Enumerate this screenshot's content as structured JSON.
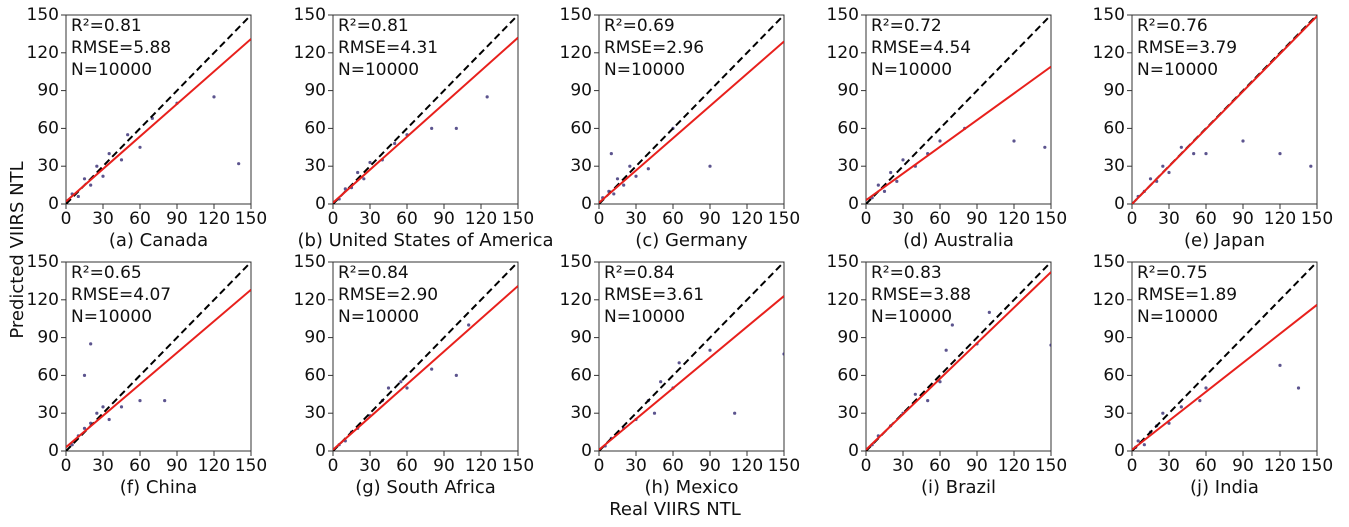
{
  "y_label": "Predicted VIIRS NTL",
  "x_label": "Real VIIRS NTL",
  "chart_data": [
    {
      "type": "scatter",
      "title": "(a) Canada",
      "annotations": [
        "R²=0.81",
        "RMSE=5.88",
        "N=10000"
      ],
      "x": [
        5,
        10,
        15,
        20,
        25,
        30,
        35,
        45,
        50,
        60,
        70,
        90,
        120,
        140
      ],
      "values": [
        8,
        6,
        20,
        15,
        30,
        22,
        40,
        35,
        55,
        45,
        68,
        80,
        85,
        32
      ],
      "color": "#40367a",
      "fit_line": {
        "x": [
          0,
          150
        ],
        "values": [
          2,
          131
        ],
        "color": "#e8201c"
      },
      "reference_line": {
        "x": [
          0,
          150
        ],
        "values": [
          0,
          150
        ],
        "color": "#000000"
      },
      "xlim": [
        0,
        150
      ],
      "ylim": [
        0,
        150
      ],
      "xticks": [
        0,
        30,
        60,
        90,
        120,
        150
      ],
      "yticks": [
        0,
        30,
        60,
        90,
        120,
        150
      ]
    },
    {
      "type": "scatter",
      "title": "(b) United States of America",
      "annotations": [
        "R²=0.81",
        "RMSE=4.31",
        "N=10000"
      ],
      "x": [
        5,
        10,
        15,
        20,
        25,
        30,
        40,
        50,
        60,
        80,
        100,
        125
      ],
      "values": [
        4,
        12,
        13,
        25,
        20,
        33,
        35,
        48,
        55,
        60,
        60,
        85
      ],
      "color": "#40367a",
      "fit_line": {
        "x": [
          0,
          150
        ],
        "values": [
          1,
          132
        ],
        "color": "#e8201c"
      },
      "reference_line": {
        "x": [
          0,
          150
        ],
        "values": [
          0,
          150
        ],
        "color": "#000000"
      },
      "xlim": [
        0,
        150
      ],
      "ylim": [
        0,
        150
      ],
      "xticks": [
        0,
        30,
        60,
        90,
        120,
        150
      ],
      "yticks": [
        0,
        30,
        60,
        90,
        120,
        150
      ]
    },
    {
      "type": "scatter",
      "title": "(c) Germany",
      "annotations": [
        "R²=0.69",
        "RMSE=2.96",
        "N=10000"
      ],
      "x": [
        3,
        8,
        12,
        15,
        20,
        25,
        30,
        40,
        60,
        90,
        10
      ],
      "values": [
        5,
        10,
        8,
        20,
        15,
        30,
        22,
        28,
        60,
        30,
        40
      ],
      "color": "#40367a",
      "fit_line": {
        "x": [
          0,
          150
        ],
        "values": [
          1,
          129
        ],
        "color": "#e8201c"
      },
      "reference_line": {
        "x": [
          0,
          150
        ],
        "values": [
          0,
          150
        ],
        "color": "#000000"
      },
      "xlim": [
        0,
        150
      ],
      "ylim": [
        0,
        150
      ],
      "xticks": [
        0,
        30,
        60,
        90,
        120,
        150
      ],
      "yticks": [
        0,
        30,
        60,
        90,
        120,
        150
      ]
    },
    {
      "type": "scatter",
      "title": "(d) Australia",
      "annotations": [
        "R²=0.72",
        "RMSE=4.54",
        "N=10000"
      ],
      "x": [
        5,
        10,
        15,
        20,
        25,
        30,
        40,
        50,
        60,
        80,
        120,
        145
      ],
      "values": [
        5,
        15,
        10,
        25,
        18,
        35,
        30,
        40,
        50,
        60,
        50,
        45
      ],
      "color": "#40367a",
      "fit_line": {
        "x": [
          0,
          150
        ],
        "values": [
          3,
          109
        ],
        "color": "#e8201c"
      },
      "reference_line": {
        "x": [
          0,
          150
        ],
        "values": [
          0,
          150
        ],
        "color": "#000000"
      },
      "xlim": [
        0,
        150
      ],
      "ylim": [
        0,
        150
      ],
      "xticks": [
        0,
        30,
        60,
        90,
        120,
        150
      ],
      "yticks": [
        0,
        30,
        60,
        90,
        120,
        150
      ]
    },
    {
      "type": "scatter",
      "title": "(e) Japan",
      "annotations": [
        "R²=0.76",
        "RMSE=3.79",
        "N=10000"
      ],
      "x": [
        5,
        10,
        15,
        20,
        25,
        30,
        40,
        50,
        60,
        90,
        120,
        145
      ],
      "values": [
        6,
        10,
        20,
        18,
        30,
        25,
        45,
        40,
        40,
        50,
        40,
        30
      ],
      "color": "#40367a",
      "fit_line": {
        "x": [
          0,
          150
        ],
        "values": [
          0,
          149
        ],
        "color": "#e8201c"
      },
      "reference_line": {
        "x": [
          0,
          150
        ],
        "values": [
          0,
          150
        ],
        "color": "#000000"
      },
      "xlim": [
        0,
        150
      ],
      "ylim": [
        0,
        150
      ],
      "xticks": [
        0,
        30,
        60,
        90,
        120,
        150
      ],
      "yticks": [
        0,
        30,
        60,
        90,
        120,
        150
      ]
    },
    {
      "type": "scatter",
      "title": "(f) China",
      "annotations": [
        "R²=0.65",
        "RMSE=4.07",
        "N=10000"
      ],
      "x": [
        5,
        10,
        15,
        20,
        25,
        30,
        35,
        45,
        60,
        20,
        80,
        15
      ],
      "values": [
        5,
        12,
        18,
        22,
        30,
        35,
        25,
        35,
        40,
        85,
        40,
        60
      ],
      "color": "#40367a",
      "fit_line": {
        "x": [
          0,
          150
        ],
        "values": [
          3,
          128
        ],
        "color": "#e8201c"
      },
      "reference_line": {
        "x": [
          0,
          150
        ],
        "values": [
          0,
          150
        ],
        "color": "#000000"
      },
      "xlim": [
        0,
        150
      ],
      "ylim": [
        0,
        150
      ],
      "xticks": [
        0,
        30,
        60,
        90,
        120,
        150
      ],
      "yticks": [
        0,
        30,
        60,
        90,
        120,
        150
      ]
    },
    {
      "type": "scatter",
      "title": "(g) South Africa",
      "annotations": [
        "R²=0.84",
        "RMSE=2.90",
        "N=10000"
      ],
      "x": [
        5,
        10,
        15,
        20,
        30,
        40,
        45,
        55,
        60,
        80,
        100,
        110
      ],
      "values": [
        5,
        8,
        15,
        18,
        28,
        40,
        50,
        55,
        50,
        65,
        60,
        100
      ],
      "color": "#40367a",
      "fit_line": {
        "x": [
          0,
          150
        ],
        "values": [
          1,
          131
        ],
        "color": "#e8201c"
      },
      "reference_line": {
        "x": [
          0,
          150
        ],
        "values": [
          0,
          150
        ],
        "color": "#000000"
      },
      "xlim": [
        0,
        150
      ],
      "ylim": [
        0,
        150
      ],
      "xticks": [
        0,
        30,
        60,
        90,
        120,
        150
      ],
      "yticks": [
        0,
        30,
        60,
        90,
        120,
        150
      ]
    },
    {
      "type": "scatter",
      "title": "(h) Mexico",
      "annotations": [
        "R²=0.84",
        "RMSE=3.61",
        "N=10000"
      ],
      "x": [
        5,
        10,
        20,
        30,
        40,
        45,
        50,
        60,
        65,
        90,
        110,
        150
      ],
      "values": [
        4,
        10,
        18,
        25,
        40,
        30,
        55,
        50,
        70,
        80,
        30,
        77
      ],
      "color": "#40367a",
      "fit_line": {
        "x": [
          0,
          150
        ],
        "values": [
          1,
          123
        ],
        "color": "#e8201c"
      },
      "reference_line": {
        "x": [
          0,
          150
        ],
        "values": [
          0,
          150
        ],
        "color": "#000000"
      },
      "xlim": [
        0,
        150
      ],
      "ylim": [
        0,
        150
      ],
      "xticks": [
        0,
        30,
        60,
        90,
        120,
        150
      ],
      "yticks": [
        0,
        30,
        60,
        90,
        120,
        150
      ]
    },
    {
      "type": "scatter",
      "title": "(i) Brazil",
      "annotations": [
        "R²=0.83",
        "RMSE=3.88",
        "N=10000"
      ],
      "x": [
        5,
        10,
        20,
        30,
        40,
        50,
        60,
        65,
        70,
        90,
        100,
        150
      ],
      "values": [
        5,
        12,
        20,
        30,
        45,
        40,
        55,
        80,
        100,
        85,
        110,
        84
      ],
      "color": "#40367a",
      "fit_line": {
        "x": [
          0,
          150
        ],
        "values": [
          1,
          142
        ],
        "color": "#e8201c"
      },
      "reference_line": {
        "x": [
          0,
          150
        ],
        "values": [
          0,
          150
        ],
        "color": "#000000"
      },
      "xlim": [
        0,
        150
      ],
      "ylim": [
        0,
        150
      ],
      "xticks": [
        0,
        30,
        60,
        90,
        120,
        150
      ],
      "yticks": [
        0,
        30,
        60,
        90,
        120,
        150
      ]
    },
    {
      "type": "scatter",
      "title": "(j) India",
      "annotations": [
        "R²=0.75",
        "RMSE=1.89",
        "N=10000"
      ],
      "x": [
        3,
        5,
        10,
        15,
        20,
        25,
        30,
        40,
        55,
        60,
        120,
        135
      ],
      "values": [
        3,
        8,
        5,
        15,
        20,
        30,
        22,
        35,
        40,
        50,
        68,
        50
      ],
      "color": "#40367a",
      "fit_line": {
        "x": [
          0,
          150
        ],
        "values": [
          1,
          116
        ],
        "color": "#e8201c"
      },
      "reference_line": {
        "x": [
          0,
          150
        ],
        "values": [
          0,
          150
        ],
        "color": "#000000"
      },
      "xlim": [
        0,
        150
      ],
      "ylim": [
        0,
        150
      ],
      "xticks": [
        0,
        30,
        60,
        90,
        120,
        150
      ],
      "yticks": [
        0,
        30,
        60,
        90,
        120,
        150
      ]
    }
  ]
}
